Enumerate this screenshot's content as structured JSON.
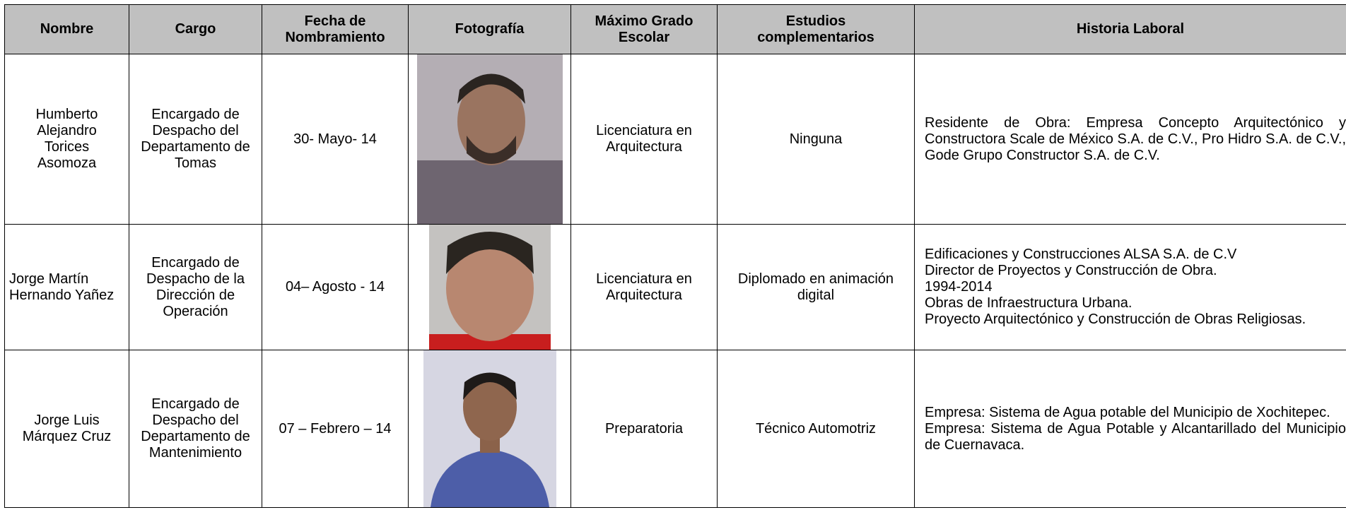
{
  "table": {
    "headers": [
      "Nombre",
      "Cargo",
      "Fecha de Nombramiento",
      "Fotografía",
      "Máximo Grado Escolar",
      "Estudios complementarios",
      "Historia Laboral"
    ],
    "rows": [
      {
        "nombre": "Humberto Alejandro Torices Asomoza",
        "cargo": "Encargado de Despacho del Departamento de Tomas",
        "fecha": "30- Mayo- 14",
        "grado": "Licenciatura en Arquitectura",
        "estudios": "Ninguna",
        "historia": [
          "Residente de Obra: Empresa Concepto Arquitectónico y Constructora Scale de México S.A. de C.V., Pro Hidro S.A. de C.V., Gode Grupo Constructor S.A. de C.V."
        ]
      },
      {
        "nombre": "Jorge Martín Hernando Yañez",
        "cargo": "Encargado de Despacho de la Dirección de Operación",
        "fecha": "04– Agosto - 14",
        "grado": "Licenciatura en Arquitectura",
        "estudios": "Diplomado en animación digital",
        "historia": [
          "Edificaciones y Construcciones ALSA S.A. de C.V",
          "Director de Proyectos y Construcción de Obra.",
          "1994-2014",
          "Obras de Infraestructura Urbana.",
          "Proyecto Arquitectónico y Construcción de Obras Religiosas."
        ]
      },
      {
        "nombre": "Jorge Luis Márquez Cruz",
        "cargo": "Encargado de Despacho del Departamento de Mantenimiento",
        "fecha": "07 – Febrero – 14",
        "grado": "Preparatoria",
        "estudios": "Técnico Automotriz",
        "historia": [
          "Empresa: Sistema de Agua potable del Municipio de Xochitepec.",
          "Empresa: Sistema de Agua Potable y Alcantarillado del Municipio de Cuernavaca."
        ]
      }
    ]
  }
}
